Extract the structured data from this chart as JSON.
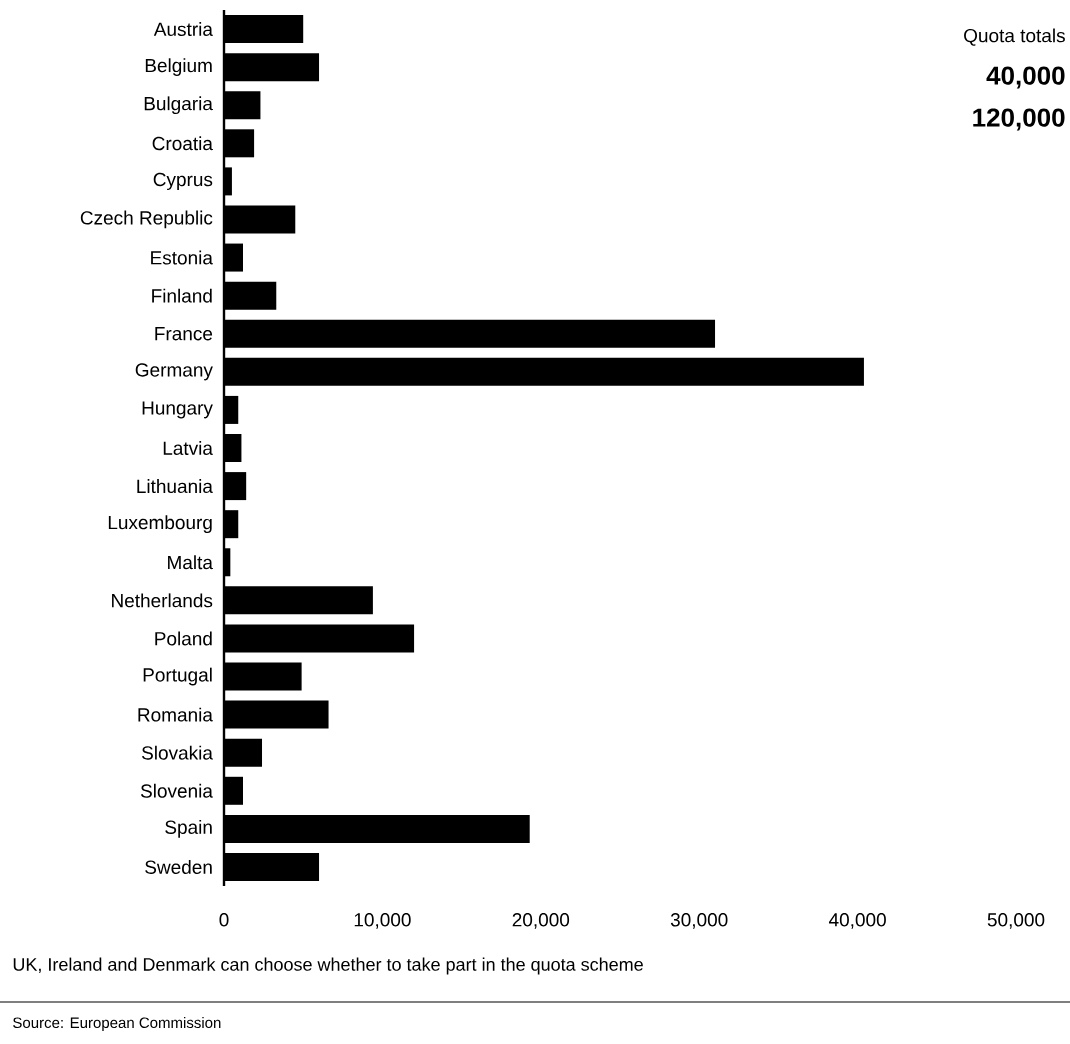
{
  "chart_data": {
    "type": "bar",
    "orientation": "horizontal",
    "categories": [
      "Austria",
      "Belgium",
      "Bulgaria",
      "Croatia",
      "Cyprus",
      "Czech Republic",
      "Estonia",
      "Finland",
      "France",
      "Germany",
      "Hungary",
      "Latvia",
      "Lithuania",
      "Luxembourg",
      "Malta",
      "Netherlands",
      "Poland",
      "Portugal",
      "Romania",
      "Slovakia",
      "Slovenia",
      "Spain",
      "Sweden"
    ],
    "values": [
      5000,
      6000,
      2300,
      1900,
      500,
      4500,
      1200,
      3300,
      31000,
      40400,
      900,
      1100,
      1400,
      900,
      400,
      9400,
      12000,
      4900,
      6600,
      2400,
      1200,
      19300,
      6000
    ],
    "color": "#000000",
    "xlim": [
      0,
      50000
    ],
    "xticks": [
      0,
      {
        "value": 10000,
        "label": "10,000"
      },
      {
        "value": 20000,
        "label": "20,000"
      },
      {
        "value": 30000,
        "label": "30,000"
      },
      {
        "value": 40000,
        "label": "40,000"
      },
      {
        "value": 50000,
        "label": "50,000"
      }
    ],
    "annotations": [
      "Quota totals",
      "40,000",
      "120,000",
      "UK, Ireland and Denmark can choose whether to take part in the quota scheme",
      "Source: European Commission"
    ]
  }
}
